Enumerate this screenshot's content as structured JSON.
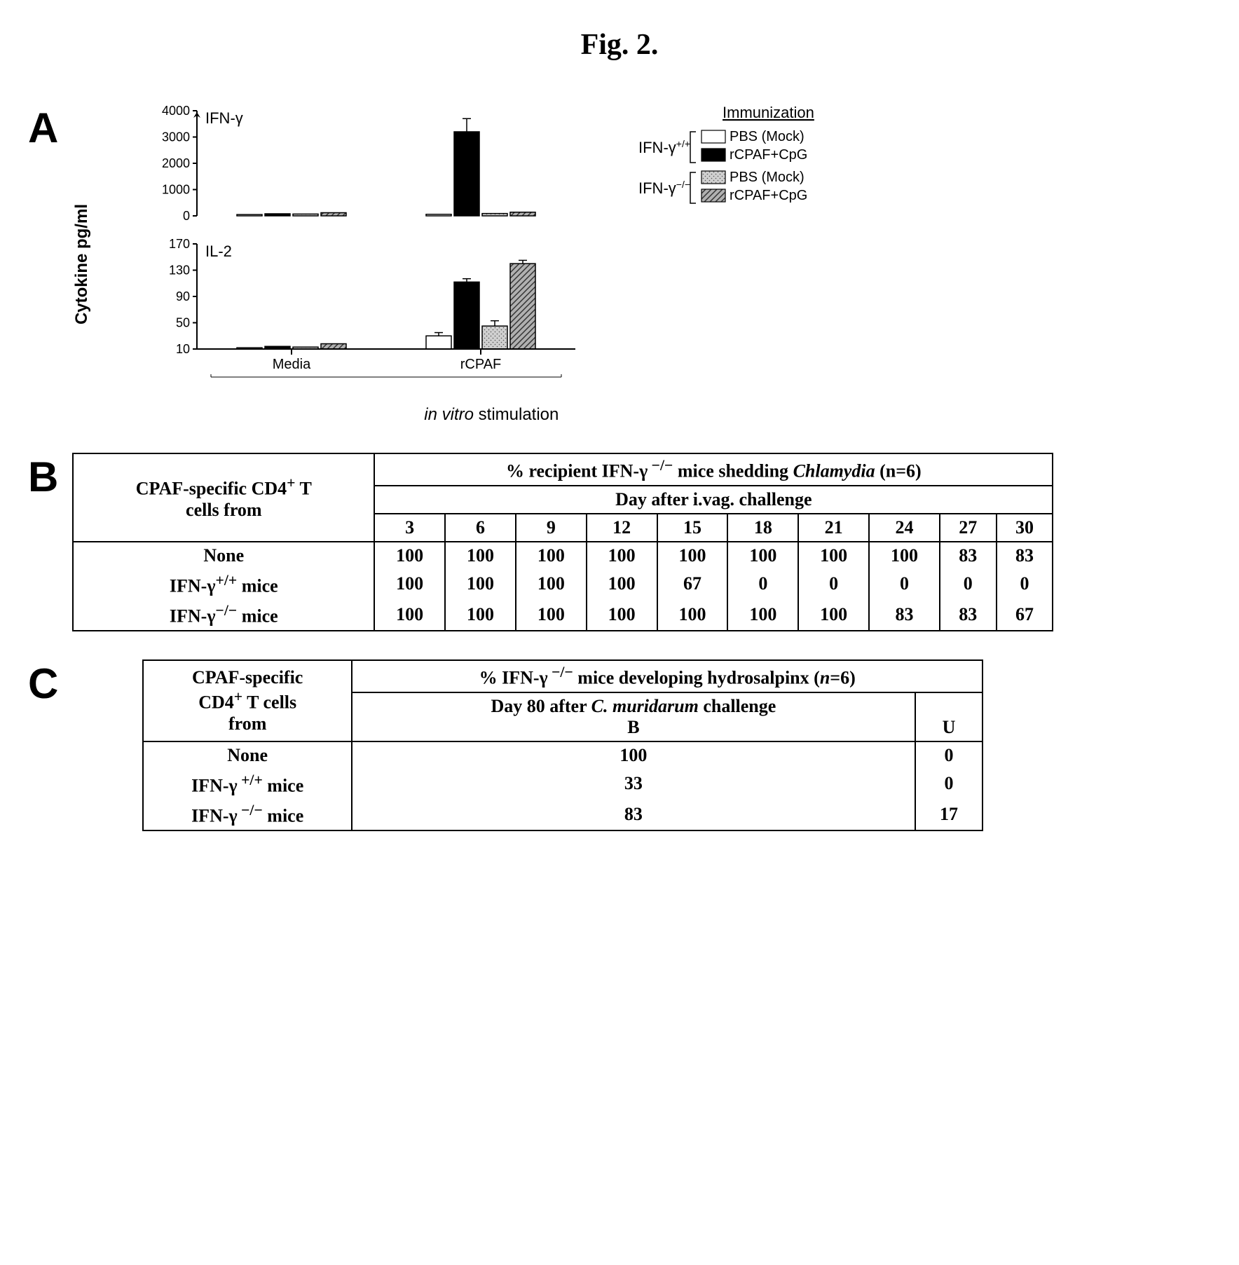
{
  "figure_title": "Fig. 2.",
  "panel_a": {
    "label": "A",
    "y_axis_label": "Cytokine pg/ml",
    "x_axis_label_italic": "in vitro",
    "x_axis_label_rest": " stimulation",
    "ifn_chart": {
      "title": "IFN-γ",
      "yticks": [
        0,
        1000,
        2000,
        3000,
        4000
      ],
      "ylim": [
        0,
        4000
      ],
      "groups": [
        "Media",
        "rCPAF"
      ],
      "series": [
        {
          "name": "IFN-γ+/+ PBS (Mock)",
          "fill": "#ffffff",
          "values": [
            50,
            60
          ],
          "errors": [
            0,
            0
          ]
        },
        {
          "name": "IFN-γ+/+ rCPAF+CpG",
          "fill": "#000000",
          "values": [
            80,
            3200
          ],
          "errors": [
            0,
            500
          ]
        },
        {
          "name": "IFN-γ-/- PBS (Mock)",
          "fill": "#c0c0c0",
          "pattern": "dots",
          "values": [
            70,
            90
          ],
          "errors": [
            0,
            0
          ]
        },
        {
          "name": "IFN-γ-/- rCPAF+CpG",
          "fill": "#808080",
          "pattern": "hatch",
          "values": [
            120,
            140
          ],
          "errors": [
            0,
            0
          ]
        }
      ]
    },
    "il2_chart": {
      "title": "IL-2",
      "yticks": [
        10,
        50,
        90,
        130,
        170
      ],
      "ylim": [
        10,
        170
      ],
      "groups": [
        "Media",
        "rCPAF"
      ],
      "series": [
        {
          "name": "IFN-γ+/+ PBS (Mock)",
          "fill": "#ffffff",
          "values": [
            12,
            30
          ],
          "errors": [
            0,
            5
          ]
        },
        {
          "name": "IFN-γ+/+ rCPAF+CpG",
          "fill": "#000000",
          "values": [
            14,
            112
          ],
          "errors": [
            0,
            5
          ]
        },
        {
          "name": "IFN-γ-/- PBS (Mock)",
          "fill": "#c0c0c0",
          "pattern": "dots",
          "values": [
            13,
            45
          ],
          "errors": [
            0,
            8
          ]
        },
        {
          "name": "IFN-γ-/- rCPAF+CpG",
          "fill": "#808080",
          "pattern": "hatch",
          "values": [
            18,
            140
          ],
          "errors": [
            0,
            5
          ]
        }
      ]
    },
    "legend": {
      "title": "Immunization",
      "groups": [
        {
          "label_prefix": "IFN-γ",
          "label_sup": "+/+",
          "items": [
            {
              "label": "PBS (Mock)",
              "fill": "#ffffff"
            },
            {
              "label": "rCPAF+CpG",
              "fill": "#000000"
            }
          ]
        },
        {
          "label_prefix": "IFN-γ",
          "label_sup": "−/−",
          "items": [
            {
              "label": "PBS (Mock)",
              "fill": "#c0c0c0",
              "pattern": "dots"
            },
            {
              "label": "rCPAF+CpG",
              "fill": "#808080",
              "pattern": "hatch"
            }
          ]
        }
      ]
    }
  },
  "panel_b": {
    "label": "B",
    "header1_col1_line1": "CPAF-specific CD4",
    "header1_col1_sup": "+",
    "header1_col1_line2": " T",
    "header1_col1_line3": "cells from",
    "header1_col2_part1": "% recipient IFN-γ",
    "header1_col2_sup": " −/−",
    "header1_col2_part2": " mice shedding ",
    "header1_col2_italic": "Chlamydia",
    "header1_col2_part3": " (n=6)",
    "header2": "Day after i.vag. challenge",
    "days": [
      "3",
      "6",
      "9",
      "12",
      "15",
      "18",
      "21",
      "24",
      "27",
      "30"
    ],
    "rows": [
      {
        "label": "None",
        "values": [
          "100",
          "100",
          "100",
          "100",
          "100",
          "100",
          "100",
          "100",
          "83",
          "83"
        ]
      },
      {
        "label_prefix": "IFN-γ",
        "label_sup": "+/+",
        "label_suffix": " mice",
        "values": [
          "100",
          "100",
          "100",
          "100",
          "67",
          "0",
          "0",
          "0",
          "0",
          "0"
        ]
      },
      {
        "label_prefix": "IFN-γ",
        "label_sup": "−/−",
        "label_suffix": " mice",
        "values": [
          "100",
          "100",
          "100",
          "100",
          "100",
          "100",
          "100",
          "83",
          "83",
          "67"
        ]
      }
    ]
  },
  "panel_c": {
    "label": "C",
    "header1_col1_line1": "CPAF-specific",
    "header1_col1_line2_part1": "CD4",
    "header1_col1_line2_sup": "+",
    "header1_col1_line2_part2": " T cells",
    "header1_col1_line3": "from",
    "header1_col2_part1": "% IFN-γ",
    "header1_col2_sup": " −/−",
    "header1_col2_part2": " mice developing hydrosalpinx (",
    "header1_col2_italic": "n",
    "header1_col2_part3": "=6)",
    "header2_part1": "Day 80 after ",
    "header2_italic": "C. muridarum",
    "header2_part2": " challenge",
    "subheaders": [
      "B",
      "U"
    ],
    "rows": [
      {
        "label": "None",
        "values": [
          "100",
          "0"
        ]
      },
      {
        "label_prefix": "IFN-γ",
        "label_sup": " +/+",
        "label_suffix": " mice",
        "values": [
          "33",
          "0"
        ]
      },
      {
        "label_prefix": "IFN-γ",
        "label_sup": " −/−",
        "label_suffix": " mice",
        "values": [
          "83",
          "17"
        ]
      }
    ]
  }
}
